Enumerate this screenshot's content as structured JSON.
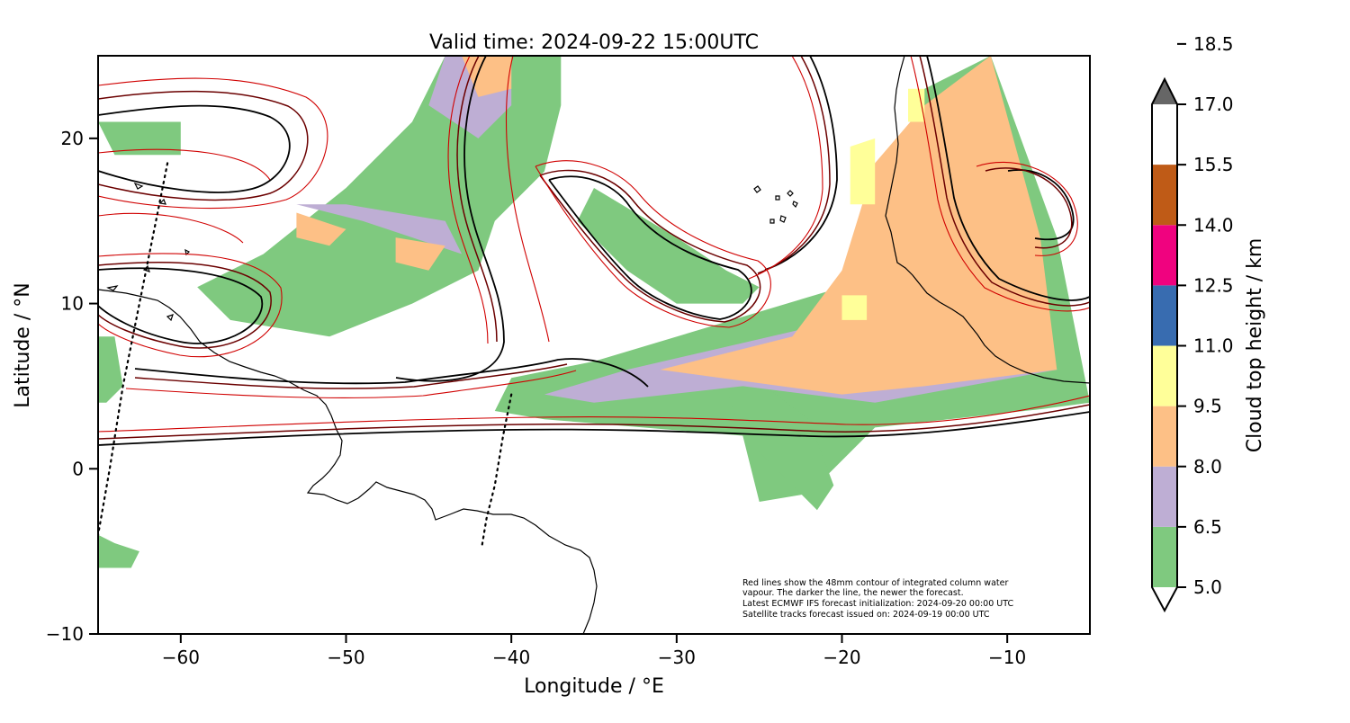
{
  "title": "Valid time: 2024-09-22 15:00UTC",
  "xlabel": "Longitude / °E",
  "ylabel": "Latitude / °N",
  "x_ticks": [
    -60,
    -50,
    -40,
    -30,
    -20,
    -10
  ],
  "y_ticks": [
    -10,
    0,
    10,
    20
  ],
  "x_tick_labels": [
    "−60",
    "−50",
    "−40",
    "−30",
    "−20",
    "−10"
  ],
  "y_tick_labels": [
    "−10",
    "0",
    "10",
    "20"
  ],
  "xlim": [
    -65,
    -5
  ],
  "ylim": [
    -10,
    25
  ],
  "colorbar": {
    "label": "Cloud top height / km",
    "levels": [
      5.0,
      6.5,
      8.0,
      9.5,
      11.0,
      12.5,
      14.0,
      15.5,
      17.0,
      18.5
    ],
    "level_labels": [
      "5.0",
      "6.5",
      "8.0",
      "9.5",
      "11.0",
      "12.5",
      "14.0",
      "15.5",
      "17.0",
      "18.5"
    ],
    "colors": [
      "#ffffff",
      "#7fc97f",
      "#beaed4",
      "#fdc086",
      "#ffff99",
      "#386cb0",
      "#f0027f",
      "#bf5b17",
      "#666666"
    ],
    "extend": "both"
  },
  "annotation": {
    "lines": [
      "Red lines show the 48mm contour of integrated column water",
      "vapour. The darker the line, the newer the forecast.",
      "Latest ECMWF IFS forecast initialization: 2024-09-20 00:00 UTC",
      "Satellite tracks forecast issued on: 2024-09-19 00:00 UTC"
    ]
  },
  "satellite_tracks": [
    [
      [
        -60.8,
        18.5
      ],
      [
        -61.5,
        15.0
      ],
      [
        -62.5,
        10.0
      ],
      [
        -63.5,
        5.0
      ],
      [
        -64.3,
        0.0
      ],
      [
        -65.0,
        -4.0
      ]
    ],
    [
      [
        -40.0,
        4.5
      ],
      [
        -40.5,
        2.0
      ],
      [
        -41.0,
        -1.0
      ],
      [
        -41.5,
        -3.0
      ],
      [
        -41.8,
        -4.8
      ]
    ]
  ],
  "chart_data": {
    "type": "heatmap",
    "description_free": true,
    "cloud_regions": [
      {
        "level": 1,
        "poly": [
          [
            -35,
            6.5
          ],
          [
            -20,
            11
          ],
          [
            -15,
            23
          ],
          [
            -11,
            25
          ],
          [
            -7,
            14
          ],
          [
            -5,
            4
          ],
          [
            -8,
            3.6
          ],
          [
            -18,
            2.5
          ],
          [
            -22,
            -1.5
          ],
          [
            -25,
            -2
          ],
          [
            -26,
            2
          ],
          [
            -38,
            3
          ],
          [
            -41,
            3.5
          ],
          [
            -40,
            5.5
          ]
        ]
      },
      {
        "level": 1,
        "poly": [
          [
            -44,
            25
          ],
          [
            -37,
            25
          ],
          [
            -37,
            22
          ],
          [
            -38,
            18
          ],
          [
            -41,
            15
          ],
          [
            -42,
            12
          ],
          [
            -46,
            10
          ],
          [
            -51,
            8
          ],
          [
            -57,
            9
          ],
          [
            -59,
            11
          ],
          [
            -55,
            13
          ],
          [
            -50,
            17
          ],
          [
            -46,
            21
          ]
        ]
      },
      {
        "level": 1,
        "poly": [
          [
            -35,
            17
          ],
          [
            -30,
            14
          ],
          [
            -27,
            12
          ],
          [
            -25,
            11
          ],
          [
            -26,
            10
          ],
          [
            -30,
            10
          ],
          [
            -33,
            12
          ],
          [
            -36,
            15
          ]
        ]
      },
      {
        "level": 1,
        "poly": [
          [
            -65,
            8
          ],
          [
            -64,
            8
          ],
          [
            -63.5,
            5
          ],
          [
            -64.5,
            4
          ],
          [
            -65,
            4
          ]
        ]
      },
      {
        "level": 1,
        "poly": [
          [
            -65,
            -4
          ],
          [
            -64,
            -4.5
          ],
          [
            -62.5,
            -5
          ],
          [
            -63,
            -6
          ],
          [
            -65,
            -6
          ]
        ]
      },
      {
        "level": 1,
        "poly": [
          [
            -65,
            21
          ],
          [
            -60,
            21
          ],
          [
            -60,
            19
          ],
          [
            -64,
            19
          ]
        ]
      },
      {
        "level": 1,
        "poly": [
          [
            -28,
            7.5
          ],
          [
            -22,
            3
          ],
          [
            -20.5,
            -1
          ],
          [
            -21.5,
            -2.5
          ],
          [
            -23,
            -1
          ],
          [
            -26,
            2
          ]
        ]
      },
      {
        "level": 2,
        "poly": [
          [
            -33,
            6
          ],
          [
            -20,
            9
          ],
          [
            -17,
            18
          ],
          [
            -13,
            23
          ],
          [
            -9,
            14
          ],
          [
            -7,
            6
          ],
          [
            -18,
            4
          ],
          [
            -26,
            5
          ],
          [
            -35,
            4
          ],
          [
            -38,
            4.5
          ]
        ]
      },
      {
        "level": 2,
        "poly": [
          [
            -44,
            25
          ],
          [
            -40,
            25
          ],
          [
            -40,
            22
          ],
          [
            -42,
            20
          ],
          [
            -45,
            22
          ]
        ]
      },
      {
        "level": 2,
        "poly": [
          [
            -53,
            16
          ],
          [
            -49,
            15
          ],
          [
            -43,
            13
          ],
          [
            -44,
            15
          ],
          [
            -47,
            15.5
          ],
          [
            -50,
            16
          ]
        ]
      },
      {
        "level": 3,
        "poly": [
          [
            -31,
            6
          ],
          [
            -23,
            8
          ],
          [
            -20,
            12
          ],
          [
            -18,
            18.5
          ],
          [
            -15,
            22
          ],
          [
            -11,
            25
          ],
          [
            -8,
            14
          ],
          [
            -7,
            6
          ],
          [
            -15,
            5
          ],
          [
            -20,
            4.5
          ]
        ]
      },
      {
        "level": 3,
        "poly": [
          [
            -43,
            25
          ],
          [
            -40,
            25
          ],
          [
            -40,
            23
          ],
          [
            -42,
            22.5
          ]
        ]
      },
      {
        "level": 3,
        "poly": [
          [
            -53,
            15.5
          ],
          [
            -50,
            14.5
          ],
          [
            -51,
            13.5
          ],
          [
            -53,
            14
          ]
        ]
      },
      {
        "level": 3,
        "poly": [
          [
            -47,
            14
          ],
          [
            -44,
            13.5
          ],
          [
            -45,
            12
          ],
          [
            -47,
            12.5
          ]
        ]
      },
      {
        "level": 4,
        "poly": [
          [
            -19.5,
            19.5
          ],
          [
            -18,
            20
          ],
          [
            -18,
            16
          ],
          [
            -19.5,
            16
          ]
        ]
      },
      {
        "level": 4,
        "poly": [
          [
            -16,
            23
          ],
          [
            -15,
            23
          ],
          [
            -15,
            21
          ],
          [
            -16,
            21
          ]
        ]
      },
      {
        "level": 4,
        "poly": [
          [
            -20,
            10.5
          ],
          [
            -18.5,
            10.5
          ],
          [
            -18.5,
            9
          ],
          [
            -20,
            9
          ]
        ]
      }
    ]
  }
}
